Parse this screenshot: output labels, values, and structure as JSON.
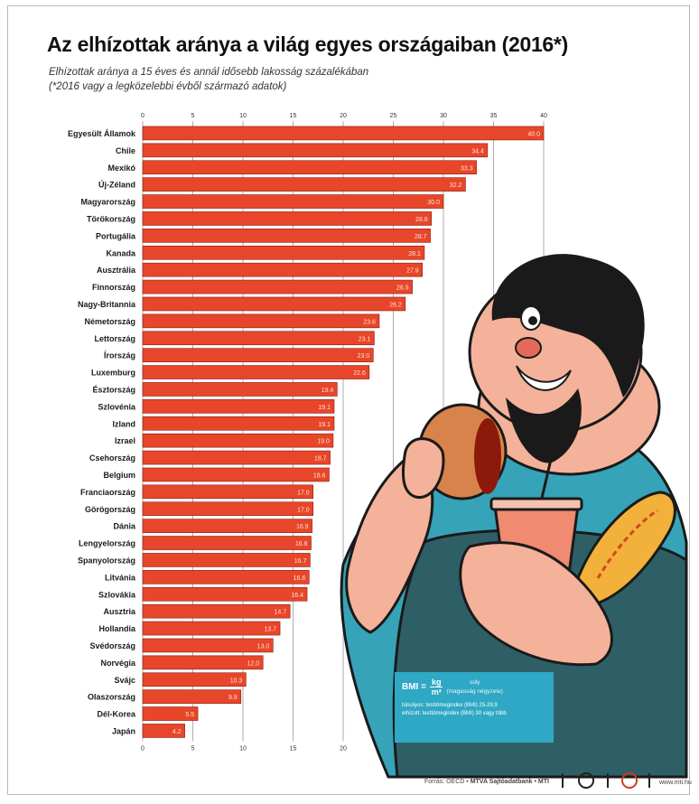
{
  "title": "Az elhízottak aránya a világ egyes országaiban (2016*)",
  "subtitle_line1": "Elhízottak aránya a 15 éves és annál idősebb lakosság százalékában",
  "subtitle_line2": "(*2016 vagy a legközelebbi évből származó adatok)",
  "colors": {
    "bar": "#e8462a",
    "bar_stroke": "#8b1a0a",
    "illustration_skin": "#f4b29a",
    "shirt": "#36a3b8",
    "apron": "#2f5f66",
    "bmi_box": "#2ea8c4"
  },
  "bmi_box": {
    "label": "BMI =",
    "numerator": "kg",
    "denominator": "m²",
    "numerator_note": "súly",
    "denominator_note": "(magasság négyzete)",
    "definition_line1": "túlsúlyos: testtömegindex (BMI) 25-29,9",
    "definition_line2": "elhízott: testtömegindex (BMI) 30 vagy több"
  },
  "footer": {
    "source_prefix": "Forrás: OECD • ",
    "source_bold": "MTVA Sajtóadatbank • MTI",
    "url": "www.mti.hu"
  },
  "chart_data": {
    "type": "bar",
    "orientation": "horizontal",
    "xlim": [
      0,
      40
    ],
    "xticks": [
      "0",
      "5",
      "10",
      "15",
      "20",
      "25",
      "30",
      "35",
      "40"
    ],
    "grid": true,
    "categories": [
      "Egyesült Államok",
      "Chile",
      "Mexikó",
      "Új-Zéland",
      "Magyarország",
      "Törökország",
      "Portugália",
      "Kanada",
      "Ausztrália",
      "Finnország",
      "Nagy-Britannia",
      "Németország",
      "Lettország",
      "Írország",
      "Luxemburg",
      "Észtország",
      "Szlovénia",
      "Izland",
      "Izrael",
      "Csehország",
      "Belgium",
      "Franciaország",
      "Görögország",
      "Dánia",
      "Lengyelország",
      "Spanyolország",
      "Litvánia",
      "Szlovákia",
      "Ausztria",
      "Hollandia",
      "Svédország",
      "Norvégia",
      "Svájc",
      "Olaszország",
      "Dél-Korea",
      "Japán"
    ],
    "values": [
      40.0,
      34.4,
      33.3,
      32.2,
      30.0,
      28.8,
      28.7,
      28.1,
      27.9,
      26.9,
      26.2,
      23.6,
      23.1,
      23.0,
      22.6,
      19.4,
      19.1,
      19.1,
      19.0,
      18.7,
      18.6,
      17.0,
      17.0,
      16.9,
      16.8,
      16.7,
      16.6,
      16.4,
      14.7,
      13.7,
      13.0,
      12.0,
      10.3,
      9.8,
      5.5,
      4.2
    ],
    "value_labels": [
      "40.0",
      "34.4",
      "33.3",
      "32.2",
      "30.0",
      "28.8",
      "28.7",
      "28.1",
      "27.9",
      "26.9",
      "26.2",
      "23.6",
      "23.1",
      "23.0",
      "22.6",
      "19.4",
      "19.1",
      "19.1",
      "19.0",
      "18.7",
      "18.6",
      "17.0",
      "17.0",
      "16.9",
      "16.8",
      "16.7",
      "16.6",
      "16.4",
      "14.7",
      "13.7",
      "13.0",
      "12.0",
      "10.3",
      "9.8",
      "5.5",
      "4.2"
    ]
  }
}
